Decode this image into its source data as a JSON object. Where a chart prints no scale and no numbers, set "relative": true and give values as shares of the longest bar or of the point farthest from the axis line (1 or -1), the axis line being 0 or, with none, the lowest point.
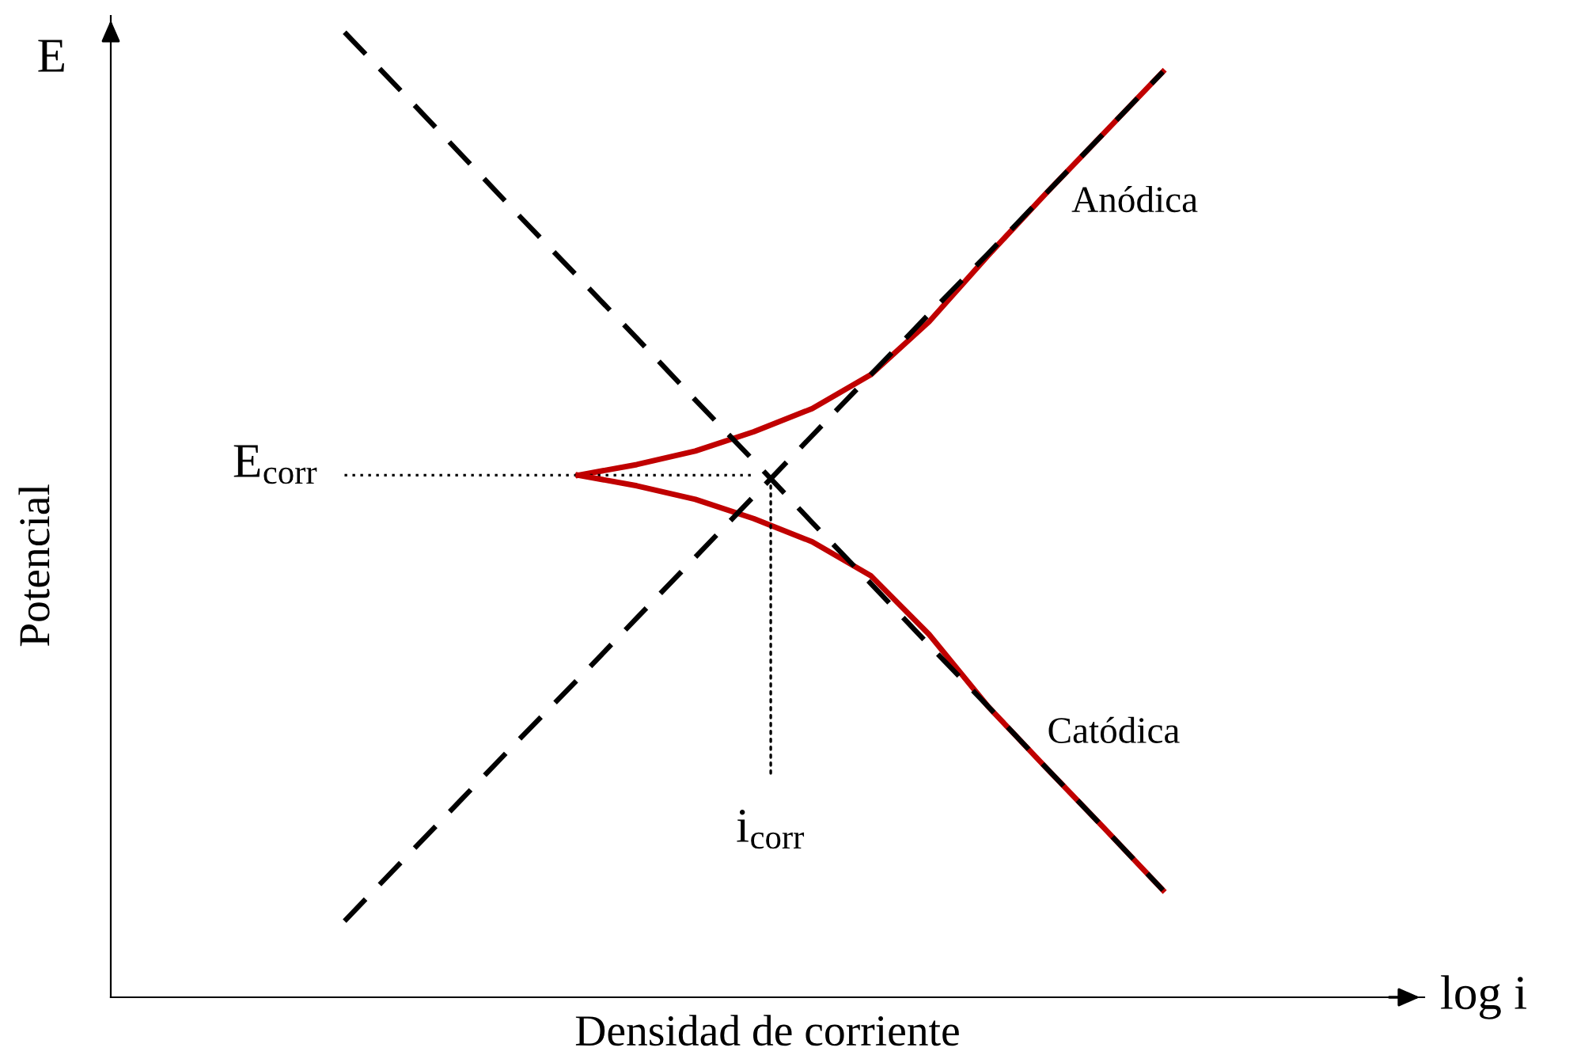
{
  "chart_data": {
    "type": "line",
    "relative": true,
    "xlabel": "Densidad de corriente",
    "annotations": [
      "E",
      "log i",
      "E$_{corr}$",
      "i$_{corr}$",
      "Potencial"
    ],
    "categories": [
      null,
      null,
      null,
      null,
      null,
      null,
      null,
      null,
      null,
      null,
      null,
      null,
      null,
      null,
      null
    ],
    "tick_labels": false,
    "legend": false,
    "marker": "none",
    "series": [
      {
        "color": "#000000",
        "line_style": "dashed",
        "values": [
          1.0,
          0.937,
          0.873,
          0.809,
          0.746,
          0.683,
          0.619,
          0.556,
          0.492,
          0.429,
          0.365,
          0.302,
          0.238,
          0.175,
          0.111
        ]
      },
      {
        "color": "#000000",
        "line_style": "dashed",
        "values": [
          0.079,
          0.142,
          0.205,
          0.268,
          0.33,
          0.393,
          0.456,
          0.519,
          0.582,
          0.645,
          0.708,
          0.77,
          0.833,
          0.896,
          0.959
        ]
      },
      {
        "name": "Anódica",
        "color": "#c00000",
        "line_style": "solid",
        "values": [
          null,
          null,
          null,
          null,
          0.541,
          0.552,
          0.566,
          0.586,
          0.61,
          0.645,
          0.7,
          0.768,
          0.833,
          0.896,
          0.959
        ]
      },
      {
        "color": "#000000",
        "line_style": "dotted",
        "values": [
          0.541,
          0.541,
          0.541,
          0.541,
          0.541,
          0.541,
          0.541,
          0.541,
          null,
          null,
          null,
          null,
          null,
          null,
          null
        ]
      },
      {
        "name": "Catódica",
        "color": "#c00000",
        "line_style": "solid",
        "values": [
          null,
          null,
          null,
          null,
          0.541,
          0.53,
          0.516,
          0.496,
          0.472,
          0.437,
          0.376,
          0.302,
          0.238,
          0.175,
          0.111
        ]
      }
    ]
  }
}
